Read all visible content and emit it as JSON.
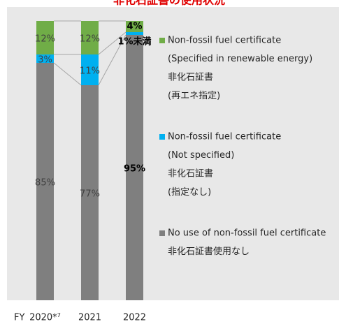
{
  "chart_data": {
    "type": "stacked_bar",
    "title": "非化石証書の使用状況",
    "x_label": "FY",
    "categories": [
      "2020*⁷",
      "2021",
      "2022"
    ],
    "ylim": [
      0,
      100
    ],
    "value_label_bold": [
      false,
      false,
      true
    ],
    "series": [
      {
        "name": [
          "Non-fossil fuel certificate",
          "(Specified in renewable energy)",
          "非化石証書",
          "(再エネ指定)"
        ],
        "color": "#70ad47",
        "values": [
          12,
          12,
          4
        ],
        "value_labels": [
          "12%",
          "12%",
          "4%"
        ]
      },
      {
        "name": [
          "Non-fossil fuel certificate",
          "(Not specified)",
          "非化石証書",
          "(指定なし)"
        ],
        "color": "#00b0f0",
        "values": [
          3,
          11,
          1
        ],
        "value_labels": [
          "3%",
          "11%",
          "1%未満"
        ]
      },
      {
        "name": [
          "No use of non-fossil fuel certificate",
          "非化石証書使用なし"
        ],
        "color": "#7f7f7f",
        "values": [
          85,
          77,
          95
        ],
        "value_labels": [
          "85%",
          "77%",
          "95%"
        ]
      }
    ]
  }
}
